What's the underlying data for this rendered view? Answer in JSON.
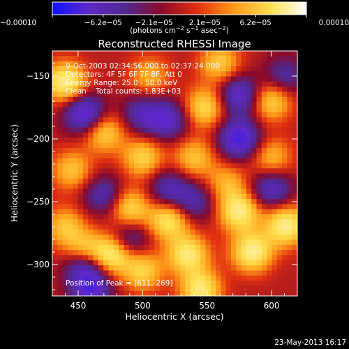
{
  "chart_data": {
    "type": "heatmap",
    "title": "Reconstructed RHESSI Image",
    "xlabel": "Heliocentric X (arcsec)",
    "ylabel": "Heliocentric Y (arcsec)",
    "xlim": [
      430,
      620
    ],
    "ylim": [
      -325,
      -130
    ],
    "x_ticks": [
      {
        "value": 450,
        "label": "450"
      },
      {
        "value": 500,
        "label": "500"
      },
      {
        "value": 550,
        "label": "550"
      },
      {
        "value": 600,
        "label": "600"
      }
    ],
    "y_ticks": [
      {
        "value": -150,
        "label": "−150"
      },
      {
        "value": -200,
        "label": "−200"
      },
      {
        "value": -250,
        "label": "−250"
      },
      {
        "value": -300,
        "label": "−300"
      }
    ],
    "colorbar": {
      "min": -0.0001,
      "max": 0.0001,
      "tick_labels": [
        "−0.00010",
        "−6.2e−05",
        "−2.1e−05",
        "2.1e−05",
        "6.2e−05",
        "0.00010"
      ],
      "colors": [
        "#1010ff",
        "#6028c8",
        "#502890",
        "#8a0a2a",
        "#e03010",
        "#ff9a18",
        "#ffe050",
        "#ffffff"
      ]
    },
    "annotations": {
      "line1": "9-Oct-2003 02:34:56.000 to 02:37:24.000",
      "line2": "Detectors: 4F 5F 6F 7F 8F, Att 0",
      "line3": "Energy Range: 25.0 - 50.0 keV",
      "line4": "Clean    Total counts: 1.83E+03",
      "peak": "Position of Peak = [611,-269]"
    },
    "peak": {
      "x": 611,
      "y": -269
    },
    "hotspots": [
      {
        "x": 440,
        "y": -155,
        "v": 1.0
      },
      {
        "x": 476,
        "y": -292,
        "v": 0.95
      },
      {
        "x": 455,
        "y": -290,
        "v": 0.8
      },
      {
        "x": 585,
        "y": -290,
        "v": 1.0
      },
      {
        "x": 575,
        "y": -258,
        "v": 0.95
      },
      {
        "x": 611,
        "y": -269,
        "v": 1.0
      },
      {
        "x": 535,
        "y": -292,
        "v": 0.9
      },
      {
        "x": 520,
        "y": -265,
        "v": 0.85
      },
      {
        "x": 545,
        "y": -320,
        "v": 0.9
      },
      {
        "x": 490,
        "y": -255,
        "v": 0.75
      },
      {
        "x": 470,
        "y": -195,
        "v": 0.7
      },
      {
        "x": 500,
        "y": -215,
        "v": 0.7
      },
      {
        "x": 540,
        "y": -215,
        "v": 0.6
      },
      {
        "x": 548,
        "y": -175,
        "v": 0.75
      },
      {
        "x": 600,
        "y": -170,
        "v": 0.7
      },
      {
        "x": 560,
        "y": -140,
        "v": 0.65
      },
      {
        "x": 505,
        "y": -150,
        "v": 0.5
      },
      {
        "x": 445,
        "y": -225,
        "v": 0.6
      },
      {
        "x": 600,
        "y": -215,
        "v": 0.55
      },
      {
        "x": 440,
        "y": -270,
        "v": 0.6
      },
      {
        "x": 500,
        "y": -305,
        "v": 0.7
      },
      {
        "x": 565,
        "y": -235,
        "v": 0.5
      },
      {
        "x": 455,
        "y": -180,
        "v": -0.95
      },
      {
        "x": 575,
        "y": -200,
        "v": -1.0
      },
      {
        "x": 575,
        "y": -165,
        "v": -0.8
      },
      {
        "x": 520,
        "y": -185,
        "v": -0.7
      },
      {
        "x": 455,
        "y": -300,
        "v": -0.9
      },
      {
        "x": 520,
        "y": -240,
        "v": -0.6
      },
      {
        "x": 470,
        "y": -245,
        "v": -0.6
      },
      {
        "x": 600,
        "y": -240,
        "v": -0.7
      },
      {
        "x": 500,
        "y": -180,
        "v": -0.6
      },
      {
        "x": 460,
        "y": -320,
        "v": -0.8
      },
      {
        "x": 610,
        "y": -150,
        "v": -0.5
      },
      {
        "x": 540,
        "y": -250,
        "v": -0.55
      },
      {
        "x": 490,
        "y": -280,
        "v": -0.55
      }
    ]
  },
  "footer": {
    "date": "23-May-2013 16:17"
  }
}
